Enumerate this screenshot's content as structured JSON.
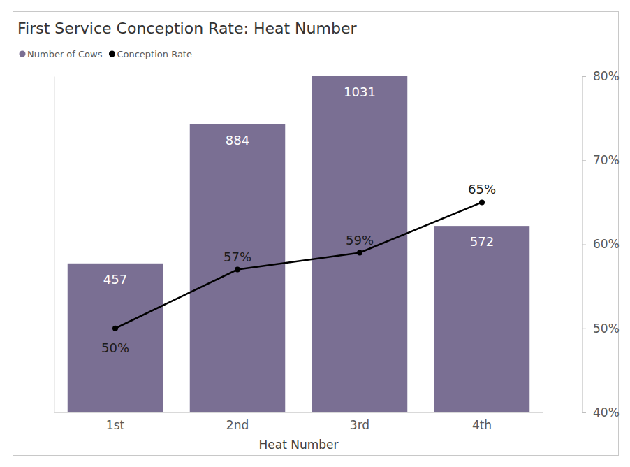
{
  "chart_data": {
    "type": "bar",
    "title": "First Service Conception Rate: Heat Number",
    "x_label": "Heat Number",
    "categories": [
      "1st",
      "2nd",
      "3rd",
      "4th"
    ],
    "series": [
      {
        "name": "Number of Cows",
        "type": "bar",
        "color": "#7a6f93",
        "values": [
          457,
          884,
          1031,
          572
        ]
      },
      {
        "name": "Conception Rate",
        "type": "line",
        "color": "#000000",
        "marker": "circle",
        "axis": "y2",
        "values": [
          50,
          57,
          59,
          65
        ],
        "value_labels": [
          "50%",
          "57%",
          "59%",
          "65%"
        ]
      }
    ],
    "ylim": [
      0,
      1031
    ],
    "yticks": [],
    "y2lim": [
      40,
      80
    ],
    "y2ticks": [
      {
        "value": 40,
        "label": "40%"
      },
      {
        "value": 50,
        "label": "50%"
      },
      {
        "value": 60,
        "label": "60%"
      },
      {
        "value": 70,
        "label": "70%"
      },
      {
        "value": 80,
        "label": "80%"
      }
    ],
    "data_labels": true,
    "legend": "top-left",
    "grid": false
  }
}
